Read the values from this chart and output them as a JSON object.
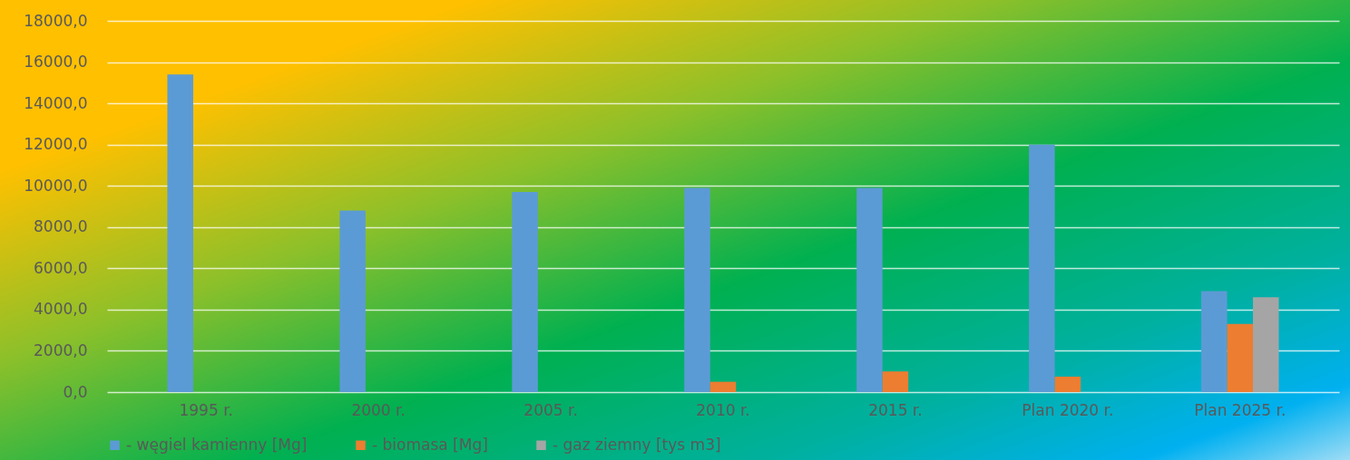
{
  "chart_data": {
    "type": "bar",
    "categories": [
      "1995 r.",
      "2000 r.",
      "2005 r.",
      "2010 r.",
      "2015 r.",
      "Plan 2020 r.",
      "Plan 2025 r."
    ],
    "series": [
      {
        "name": "- węgiel kamienny [Mg]",
        "color": "#5b9bd5",
        "values": [
          15400,
          8800,
          9700,
          9900,
          9900,
          12000,
          4900
        ]
      },
      {
        "name": "- biomasa [Mg]",
        "color": "#ed7d31",
        "values": [
          null,
          null,
          null,
          500,
          1000,
          750,
          3300
        ]
      },
      {
        "name": "- gaz ziemny [tys m3]",
        "color": "#a5a5a5",
        "values": [
          null,
          null,
          null,
          null,
          null,
          null,
          4600
        ]
      }
    ],
    "ylim": [
      0,
      18000
    ],
    "yticks": [
      {
        "value": 0,
        "label": "0,0"
      },
      {
        "value": 2000,
        "label": "2000,0"
      },
      {
        "value": 4000,
        "label": "4000,0"
      },
      {
        "value": 6000,
        "label": "6000,0"
      },
      {
        "value": 8000,
        "label": "8000,0"
      },
      {
        "value": 10000,
        "label": "10000,0"
      },
      {
        "value": 12000,
        "label": "12000,0"
      },
      {
        "value": 14000,
        "label": "14000,0"
      },
      {
        "value": 16000,
        "label": "16000,0"
      },
      {
        "value": 18000,
        "label": "18000,0"
      }
    ],
    "grid": "y",
    "legend": "bottom"
  }
}
